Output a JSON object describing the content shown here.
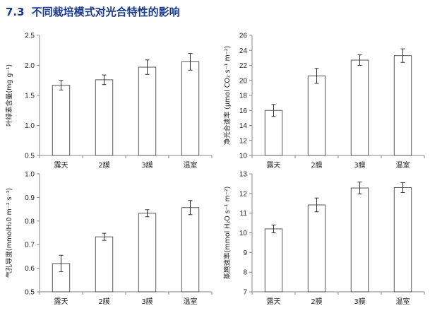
{
  "slide": {
    "number": "7.3",
    "title": "不同栽培模式对光合特性的影响"
  },
  "colors": {
    "title": "#1a3a8c",
    "bar_fill": "#ffffff",
    "bar_stroke": "#555555",
    "axis": "#888888"
  },
  "chart_data": [
    {
      "type": "bar",
      "ylabel": "叶绿素含量(mg g⁻¹)",
      "categories": [
        "露天",
        "2膜",
        "3膜",
        "温室"
      ],
      "values": [
        1.67,
        1.76,
        1.97,
        2.06
      ],
      "errors": [
        0.08,
        0.08,
        0.12,
        0.14
      ],
      "ylim": [
        0.5,
        2.5
      ],
      "yticks": [
        "0.5",
        "1.0",
        "1.5",
        "2.0",
        "2.5"
      ],
      "grid": false
    },
    {
      "type": "bar",
      "ylabel": "净光合速率 (μmol CO₂ s⁻¹ m⁻²)",
      "categories": [
        "露天",
        "2膜",
        "3膜",
        "温室"
      ],
      "values": [
        16.0,
        20.6,
        22.7,
        23.3
      ],
      "errors": [
        0.8,
        1.0,
        0.7,
        0.9
      ],
      "ylim": [
        10,
        26
      ],
      "yticks": [
        "10",
        "12",
        "14",
        "16",
        "18",
        "20",
        "22",
        "24",
        "26"
      ],
      "grid": false
    },
    {
      "type": "bar",
      "ylabel": "气孔导度(mmolH₂0 m⁻² s⁻¹)",
      "categories": [
        "露天",
        "2膜",
        "3膜",
        "温室"
      ],
      "values": [
        0.62,
        0.733,
        0.833,
        0.857
      ],
      "errors": [
        0.035,
        0.015,
        0.015,
        0.03
      ],
      "ylim": [
        0.5,
        1.0
      ],
      "yticks": [
        "0.5",
        "0.6",
        "0.7",
        "0.8",
        "0.9",
        "1.0"
      ],
      "grid": false
    },
    {
      "type": "bar",
      "ylabel": "蒸腾速率(mmol H₂O s⁻¹ m⁻²)",
      "categories": [
        "露天",
        "2膜",
        "3膜",
        "温室"
      ],
      "values": [
        10.2,
        11.42,
        12.28,
        12.3
      ],
      "errors": [
        0.2,
        0.35,
        0.3,
        0.25
      ],
      "ylim": [
        7,
        13
      ],
      "yticks": [
        "7",
        "8",
        "9",
        "10",
        "11",
        "12",
        "13"
      ],
      "grid": false
    }
  ]
}
